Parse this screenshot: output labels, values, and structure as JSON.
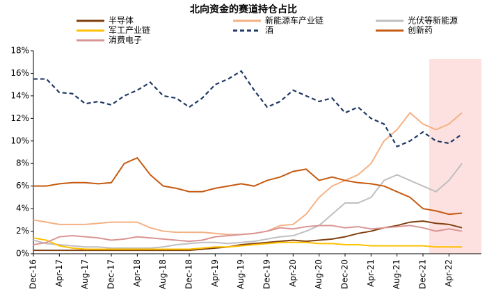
{
  "chart_data": {
    "type": "line",
    "title": "北向资金的赛道持仓占比",
    "categories": [
      "Dec-16",
      null,
      "Apr-17",
      null,
      "Aug-17",
      null,
      "Dec-17",
      null,
      "Apr-18",
      null,
      "Aug-18",
      null,
      "Dec-18",
      null,
      "Apr-19",
      null,
      "Aug-19",
      null,
      "Dec-19",
      null,
      "Apr-20",
      null,
      "Aug-20",
      null,
      "Dec-20",
      null,
      "Apr-21",
      null,
      "Aug-21",
      null,
      "Dec-21",
      null,
      "Apr-22",
      null
    ],
    "ylim": [
      0,
      18
    ],
    "yticks": [
      {
        "value": 0,
        "label": "0%"
      },
      {
        "value": 2,
        "label": "2%"
      },
      {
        "value": 4,
        "label": "4%"
      },
      {
        "value": 6,
        "label": "6%"
      },
      {
        "value": 8,
        "label": "8%"
      },
      {
        "value": 10,
        "label": "10%"
      },
      {
        "value": 12,
        "label": "12%"
      },
      {
        "value": 14,
        "label": "14%"
      },
      {
        "value": 16,
        "label": "16%"
      },
      {
        "value": 18,
        "label": "18%"
      }
    ],
    "series": [
      {
        "name": "半导体",
        "color": "#7f3f0f",
        "values": [
          0.3,
          0.3,
          0.3,
          0.3,
          0.3,
          0.3,
          0.3,
          0.3,
          0.3,
          0.3,
          0.3,
          0.3,
          0.3,
          0.4,
          0.5,
          0.6,
          0.8,
          0.9,
          1.0,
          1.1,
          1.2,
          1.1,
          1.2,
          1.3,
          1.5,
          1.8,
          2.0,
          2.3,
          2.5,
          2.8,
          2.9,
          2.7,
          2.6,
          2.3
        ]
      },
      {
        "name": "新能源车产业链",
        "color": "#f4b183",
        "values": [
          3.0,
          2.8,
          2.6,
          2.6,
          2.6,
          2.7,
          2.8,
          2.8,
          2.8,
          2.3,
          2.0,
          1.9,
          1.9,
          1.9,
          1.8,
          1.7,
          1.7,
          1.8,
          2.0,
          2.5,
          2.6,
          3.5,
          5.0,
          6.0,
          6.5,
          7.0,
          8.0,
          10.0,
          11.0,
          12.5,
          11.5,
          11.0,
          11.5,
          12.5
        ]
      },
      {
        "name": "光伏等新能源",
        "color": "#bfbfbf",
        "values": [
          1.2,
          0.9,
          0.8,
          0.7,
          0.6,
          0.6,
          0.5,
          0.5,
          0.5,
          0.5,
          0.6,
          0.8,
          0.9,
          1.0,
          1.0,
          0.9,
          1.0,
          1.1,
          1.3,
          1.5,
          1.6,
          2.0,
          2.5,
          3.5,
          4.5,
          4.5,
          5.0,
          6.5,
          7.0,
          6.5,
          6.0,
          5.5,
          6.5,
          8.0
        ]
      },
      {
        "name": "军工产业链",
        "color": "#ffc000",
        "values": [
          1.4,
          1.2,
          0.7,
          0.5,
          0.4,
          0.4,
          0.4,
          0.4,
          0.4,
          0.4,
          0.4,
          0.4,
          0.4,
          0.5,
          0.6,
          0.6,
          0.7,
          0.8,
          0.9,
          1.0,
          1.0,
          1.0,
          0.9,
          0.9,
          0.8,
          0.8,
          0.7,
          0.7,
          0.7,
          0.7,
          0.7,
          0.6,
          0.6,
          0.6
        ]
      },
      {
        "name": "酒",
        "color": "#1f3864",
        "dashed": true,
        "values": [
          15.5,
          15.5,
          14.3,
          14.2,
          13.3,
          13.5,
          13.2,
          14.0,
          14.5,
          15.2,
          14.0,
          13.8,
          13.0,
          13.8,
          15.0,
          15.5,
          16.2,
          14.5,
          13.0,
          13.5,
          14.5,
          14.0,
          13.5,
          13.8,
          12.5,
          13.0,
          12.0,
          11.5,
          9.5,
          10.0,
          10.8,
          10.0,
          9.8,
          10.6
        ]
      },
      {
        "name": "创新药",
        "color": "#c55a11",
        "values": [
          6.0,
          6.0,
          6.2,
          6.3,
          6.3,
          6.2,
          6.3,
          8.0,
          8.5,
          7.0,
          6.0,
          5.8,
          5.5,
          5.5,
          5.8,
          6.0,
          6.2,
          6.0,
          6.5,
          6.8,
          7.3,
          7.5,
          6.5,
          6.8,
          6.5,
          6.3,
          6.2,
          6.0,
          5.5,
          5.0,
          4.0,
          3.8,
          3.5,
          3.6
        ]
      },
      {
        "name": "消费电子",
        "color": "#d99594",
        "values": [
          0.8,
          1.0,
          1.5,
          1.6,
          1.5,
          1.4,
          1.2,
          1.3,
          1.5,
          1.4,
          1.3,
          1.2,
          1.1,
          1.2,
          1.5,
          1.6,
          1.7,
          1.8,
          2.0,
          2.3,
          2.2,
          2.4,
          2.5,
          2.5,
          2.3,
          2.4,
          2.2,
          2.3,
          2.4,
          2.5,
          2.3,
          2.0,
          2.2,
          2.0
        ]
      }
    ]
  }
}
